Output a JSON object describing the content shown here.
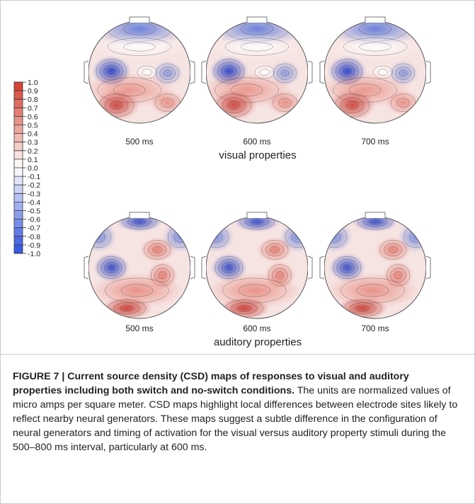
{
  "colorbar": {
    "ticks": [
      "1.0",
      "0.9",
      "0.8",
      "0.7",
      "0.6",
      "0.5",
      "0.4",
      "0.3",
      "0.2",
      "0.1",
      "0.0",
      "-0.1",
      "-0.2",
      "-0.3",
      "-0.4",
      "-0.5",
      "-0.6",
      "-0.7",
      "-0.8",
      "-0.9",
      "-1.0"
    ],
    "max_color": "#d63a2a",
    "zero_color": "#ffffff",
    "min_color": "#2f4fe0"
  },
  "panels": {
    "visual": {
      "label": "visual properties",
      "times": [
        "500 ms",
        "600 ms",
        "700 ms"
      ]
    },
    "auditory": {
      "label": "auditory properties",
      "times": [
        "500 ms",
        "600 ms",
        "700 ms"
      ]
    }
  },
  "caption": {
    "figure_label": "FIGURE 7 | Current source density (CSD) maps of responses to visual and auditory properties including both switch and no-switch conditions.",
    "text": " The units are normalized values of micro amps per square meter. CSD maps highlight local differences between electrode sites likely to reflect nearby neural generators. These maps suggest a subtle difference in the configuration of neural generators and timing of activation for the visual versus auditory property stimuli during the 500–800 ms interval, particularly at 600 ms."
  }
}
